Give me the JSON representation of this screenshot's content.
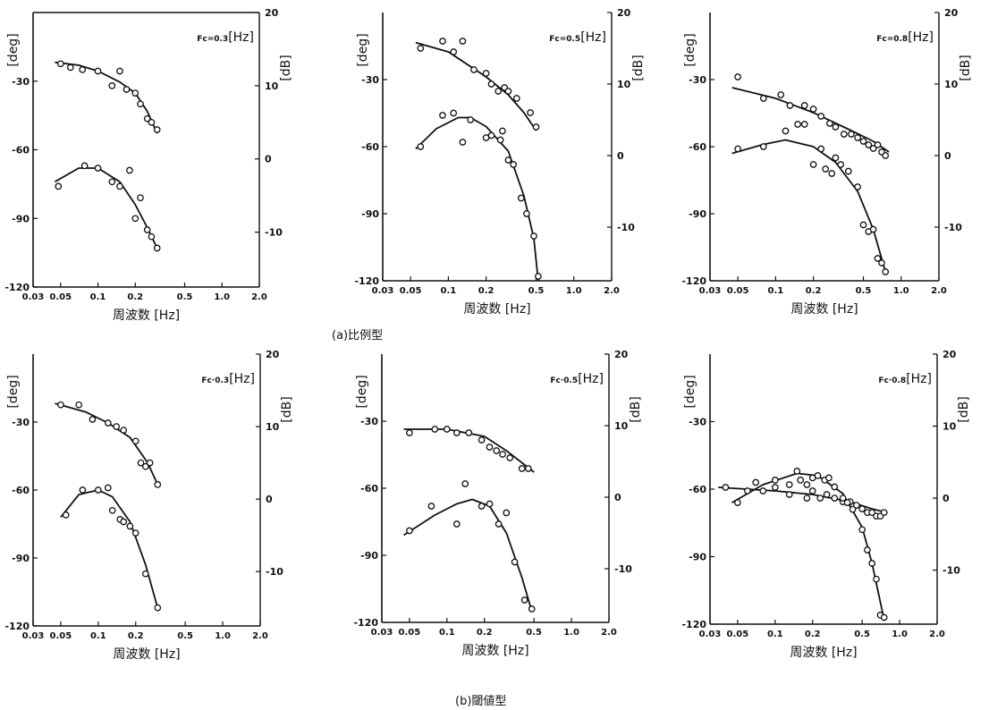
{
  "captions": {
    "a": "(a)比例型",
    "b": "(b)閾値型"
  },
  "common": {
    "xlabel": "周波数 [Hz]",
    "ylabel_left": "[deg]",
    "ylabel_right": "[dB]",
    "x_ticks": [
      0.03,
      0.05,
      0.1,
      0.2,
      0.5,
      1.0,
      2.0
    ],
    "x_tick_labels": [
      "0.03",
      "0.05",
      "0.1",
      "0.2",
      "0.5",
      "1.0",
      "2.0"
    ],
    "x_scale": "log",
    "xlim": [
      0.03,
      2.0
    ],
    "phase_ticks": [
      -30,
      -60,
      -90,
      -120
    ],
    "phase_ylim": [
      -120,
      0
    ],
    "gain_ticks": [
      20,
      10,
      0,
      -10
    ],
    "gain_ylim": [
      -17.5,
      20
    ],
    "mark_color": "#111111"
  },
  "chart_data": [
    {
      "type": "scatter",
      "group": "a",
      "fc_label": "Fc=0.3",
      "fc_unit": "[Hz]",
      "gain_points": [
        [
          0.05,
          13
        ],
        [
          0.06,
          12.5
        ],
        [
          0.075,
          12.2
        ],
        [
          0.1,
          12
        ],
        [
          0.13,
          10
        ],
        [
          0.15,
          12
        ],
        [
          0.17,
          9.5
        ],
        [
          0.2,
          9
        ],
        [
          0.22,
          7.5
        ],
        [
          0.25,
          5.5
        ],
        [
          0.27,
          5
        ],
        [
          0.3,
          4
        ]
      ],
      "gain_curve": [
        [
          0.045,
          13.2
        ],
        [
          0.07,
          12.8
        ],
        [
          0.1,
          12
        ],
        [
          0.15,
          10.5
        ],
        [
          0.2,
          9
        ],
        [
          0.25,
          6.5
        ],
        [
          0.3,
          3.5
        ]
      ],
      "phase_points": [
        [
          0.048,
          -76
        ],
        [
          0.078,
          -67
        ],
        [
          0.1,
          -68
        ],
        [
          0.13,
          -74
        ],
        [
          0.15,
          -76
        ],
        [
          0.18,
          -69
        ],
        [
          0.2,
          -90
        ],
        [
          0.22,
          -81
        ],
        [
          0.25,
          -95
        ],
        [
          0.27,
          -98
        ],
        [
          0.3,
          -103
        ]
      ],
      "phase_curve": [
        [
          0.045,
          -74
        ],
        [
          0.07,
          -68
        ],
        [
          0.1,
          -68
        ],
        [
          0.15,
          -74
        ],
        [
          0.2,
          -84
        ],
        [
          0.25,
          -94
        ],
        [
          0.3,
          -103
        ]
      ]
    },
    {
      "type": "scatter",
      "group": "a",
      "fc_label": "Fc=0.5",
      "fc_unit": "[Hz]",
      "gain_points": [
        [
          0.06,
          15
        ],
        [
          0.09,
          16
        ],
        [
          0.11,
          14.5
        ],
        [
          0.13,
          16
        ],
        [
          0.16,
          12
        ],
        [
          0.2,
          11.5
        ],
        [
          0.22,
          10
        ],
        [
          0.25,
          9
        ],
        [
          0.28,
          9.5
        ],
        [
          0.3,
          9
        ],
        [
          0.35,
          8
        ],
        [
          0.45,
          6
        ],
        [
          0.5,
          4
        ]
      ],
      "gain_curve": [
        [
          0.055,
          15.8
        ],
        [
          0.1,
          14.5
        ],
        [
          0.2,
          11
        ],
        [
          0.3,
          8.5
        ],
        [
          0.4,
          6
        ],
        [
          0.5,
          3.5
        ]
      ],
      "phase_points": [
        [
          0.06,
          -60
        ],
        [
          0.09,
          -46
        ],
        [
          0.11,
          -45
        ],
        [
          0.13,
          -58
        ],
        [
          0.15,
          -48
        ],
        [
          0.2,
          -56
        ],
        [
          0.22,
          -55
        ],
        [
          0.26,
          -57
        ],
        [
          0.27,
          -53
        ],
        [
          0.3,
          -66
        ],
        [
          0.33,
          -68
        ],
        [
          0.38,
          -83
        ],
        [
          0.42,
          -90
        ],
        [
          0.48,
          -100
        ],
        [
          0.52,
          -118
        ]
      ],
      "phase_curve": [
        [
          0.055,
          -61
        ],
        [
          0.08,
          -52
        ],
        [
          0.12,
          -47
        ],
        [
          0.15,
          -47
        ],
        [
          0.2,
          -51
        ],
        [
          0.3,
          -62
        ],
        [
          0.4,
          -82
        ],
        [
          0.48,
          -101
        ],
        [
          0.52,
          -120
        ]
      ]
    },
    {
      "type": "scatter",
      "group": "a",
      "fc_label": "Fc=0.8",
      "fc_unit": "[Hz]",
      "gain_points": [
        [
          0.05,
          11
        ],
        [
          0.08,
          8
        ],
        [
          0.11,
          8.5
        ],
        [
          0.13,
          7
        ],
        [
          0.17,
          7
        ],
        [
          0.2,
          6.5
        ],
        [
          0.23,
          5.5
        ],
        [
          0.27,
          4.5
        ],
        [
          0.3,
          4
        ],
        [
          0.35,
          3
        ],
        [
          0.4,
          3
        ],
        [
          0.45,
          2.5
        ],
        [
          0.5,
          2
        ],
        [
          0.55,
          1.5
        ],
        [
          0.6,
          1
        ],
        [
          0.65,
          1.5
        ],
        [
          0.7,
          0.5
        ],
        [
          0.75,
          0
        ]
      ],
      "gain_curve": [
        [
          0.045,
          9.5
        ],
        [
          0.1,
          8
        ],
        [
          0.2,
          6
        ],
        [
          0.4,
          3.5
        ],
        [
          0.6,
          2
        ],
        [
          0.8,
          0.5
        ]
      ],
      "phase_points": [
        [
          0.05,
          -61
        ],
        [
          0.08,
          -60
        ],
        [
          0.12,
          -53
        ],
        [
          0.15,
          -50
        ],
        [
          0.17,
          -50
        ],
        [
          0.2,
          -68
        ],
        [
          0.23,
          -61
        ],
        [
          0.25,
          -70
        ],
        [
          0.28,
          -72
        ],
        [
          0.3,
          -65
        ],
        [
          0.33,
          -68
        ],
        [
          0.38,
          -71
        ],
        [
          0.45,
          -78
        ],
        [
          0.5,
          -95
        ],
        [
          0.55,
          -98
        ],
        [
          0.6,
          -97
        ],
        [
          0.65,
          -110
        ],
        [
          0.7,
          -112
        ],
        [
          0.75,
          -116
        ]
      ],
      "phase_curve": [
        [
          0.045,
          -63
        ],
        [
          0.08,
          -59
        ],
        [
          0.12,
          -57
        ],
        [
          0.2,
          -60
        ],
        [
          0.3,
          -67
        ],
        [
          0.45,
          -80
        ],
        [
          0.6,
          -97
        ],
        [
          0.75,
          -116
        ]
      ]
    },
    {
      "type": "scatter",
      "group": "b",
      "fc_label": "Fc·0.3",
      "fc_unit": "[Hz]",
      "gain_points": [
        [
          0.05,
          13
        ],
        [
          0.07,
          13
        ],
        [
          0.09,
          11
        ],
        [
          0.12,
          10.5
        ],
        [
          0.14,
          10
        ],
        [
          0.16,
          9.5
        ],
        [
          0.2,
          8
        ],
        [
          0.22,
          5
        ],
        [
          0.24,
          4.5
        ],
        [
          0.26,
          5
        ],
        [
          0.3,
          2
        ]
      ],
      "gain_curve": [
        [
          0.045,
          13.2
        ],
        [
          0.08,
          12
        ],
        [
          0.12,
          10.5
        ],
        [
          0.18,
          8.5
        ],
        [
          0.25,
          5
        ],
        [
          0.3,
          2
        ]
      ],
      "phase_points": [
        [
          0.055,
          -71
        ],
        [
          0.075,
          -60
        ],
        [
          0.1,
          -60
        ],
        [
          0.12,
          -59
        ],
        [
          0.13,
          -69
        ],
        [
          0.15,
          -73
        ],
        [
          0.16,
          -74
        ],
        [
          0.18,
          -76
        ],
        [
          0.2,
          -79
        ],
        [
          0.24,
          -97
        ],
        [
          0.3,
          -112
        ]
      ],
      "phase_curve": [
        [
          0.05,
          -72
        ],
        [
          0.07,
          -62
        ],
        [
          0.1,
          -60
        ],
        [
          0.13,
          -63
        ],
        [
          0.18,
          -74
        ],
        [
          0.24,
          -93
        ],
        [
          0.3,
          -112
        ]
      ]
    },
    {
      "type": "scatter",
      "group": "b",
      "fc_label": "Fc·0.5",
      "fc_unit": "[Hz]",
      "gain_points": [
        [
          0.05,
          9
        ],
        [
          0.08,
          9.5
        ],
        [
          0.1,
          9.5
        ],
        [
          0.12,
          9
        ],
        [
          0.15,
          9
        ],
        [
          0.19,
          8
        ],
        [
          0.22,
          7
        ],
        [
          0.25,
          6.5
        ],
        [
          0.28,
          6
        ],
        [
          0.32,
          5.5
        ],
        [
          0.4,
          4
        ],
        [
          0.45,
          4
        ]
      ],
      "gain_curve": [
        [
          0.045,
          9.5
        ],
        [
          0.1,
          9.5
        ],
        [
          0.2,
          8.5
        ],
        [
          0.3,
          6.5
        ],
        [
          0.5,
          3.5
        ]
      ],
      "phase_points": [
        [
          0.05,
          -79
        ],
        [
          0.075,
          -68
        ],
        [
          0.12,
          -76
        ],
        [
          0.14,
          -58
        ],
        [
          0.19,
          -68
        ],
        [
          0.22,
          -67
        ],
        [
          0.26,
          -76
        ],
        [
          0.3,
          -71
        ],
        [
          0.35,
          -93
        ],
        [
          0.42,
          -110
        ],
        [
          0.48,
          -114
        ]
      ],
      "phase_curve": [
        [
          0.045,
          -81
        ],
        [
          0.08,
          -72
        ],
        [
          0.12,
          -67
        ],
        [
          0.16,
          -65
        ],
        [
          0.22,
          -68
        ],
        [
          0.3,
          -80
        ],
        [
          0.4,
          -100
        ],
        [
          0.48,
          -115
        ]
      ]
    },
    {
      "type": "scatter",
      "group": "b",
      "fc_label": "Fc·0.8",
      "fc_unit": "[Hz]",
      "gain_points": [
        [
          0.04,
          1.5
        ],
        [
          0.06,
          1
        ],
        [
          0.08,
          1
        ],
        [
          0.1,
          1.5
        ],
        [
          0.13,
          0.5
        ],
        [
          0.16,
          2.5
        ],
        [
          0.18,
          0
        ],
        [
          0.2,
          1
        ],
        [
          0.23,
          0
        ],
        [
          0.26,
          0.5
        ],
        [
          0.3,
          0
        ],
        [
          0.35,
          -0.5
        ],
        [
          0.4,
          -0.5
        ],
        [
          0.45,
          -1
        ],
        [
          0.5,
          -1.5
        ],
        [
          0.55,
          -2
        ],
        [
          0.6,
          -2
        ],
        [
          0.65,
          -2.5
        ],
        [
          0.7,
          -2.5
        ],
        [
          0.75,
          -2
        ]
      ],
      "gain_curve": [
        [
          0.035,
          1.5
        ],
        [
          0.1,
          1
        ],
        [
          0.2,
          0.5
        ],
        [
          0.4,
          -0.5
        ],
        [
          0.6,
          -1.5
        ],
        [
          0.8,
          -2
        ]
      ],
      "phase_points": [
        [
          0.05,
          -66
        ],
        [
          0.07,
          -57
        ],
        [
          0.1,
          -56
        ],
        [
          0.13,
          -58
        ],
        [
          0.15,
          -52
        ],
        [
          0.18,
          -58
        ],
        [
          0.2,
          -55
        ],
        [
          0.22,
          -54
        ],
        [
          0.25,
          -56
        ],
        [
          0.27,
          -55
        ],
        [
          0.3,
          -59
        ],
        [
          0.35,
          -64
        ],
        [
          0.38,
          -66
        ],
        [
          0.42,
          -69
        ],
        [
          0.5,
          -78
        ],
        [
          0.55,
          -87
        ],
        [
          0.6,
          -93
        ],
        [
          0.65,
          -100
        ],
        [
          0.7,
          -116
        ],
        [
          0.75,
          -117
        ]
      ],
      "phase_curve": [
        [
          0.045,
          -66
        ],
        [
          0.08,
          -58
        ],
        [
          0.15,
          -53
        ],
        [
          0.22,
          -54
        ],
        [
          0.35,
          -62
        ],
        [
          0.5,
          -77
        ],
        [
          0.6,
          -93
        ],
        [
          0.75,
          -118
        ]
      ]
    }
  ]
}
